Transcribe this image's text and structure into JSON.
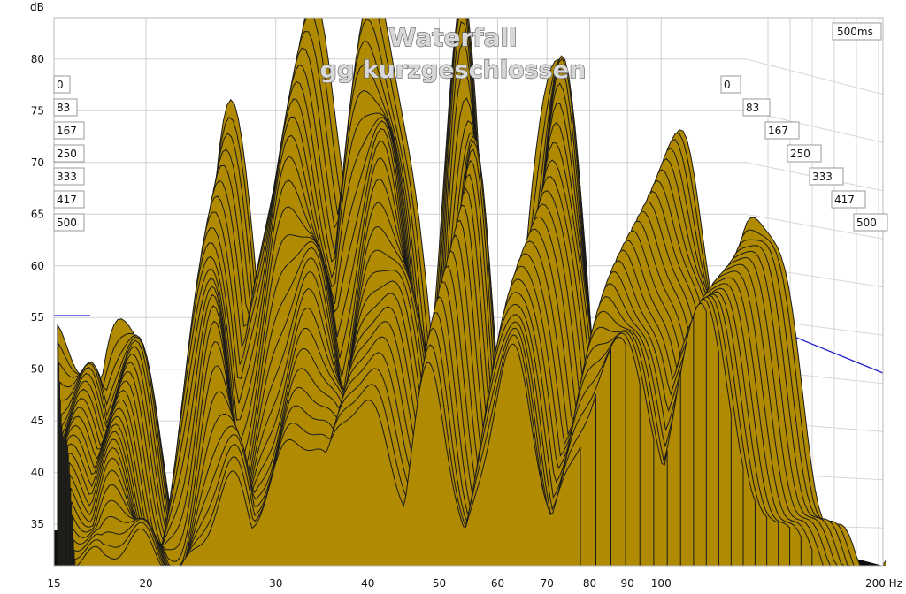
{
  "chart_data": {
    "type": "waterfall",
    "title": "Waterfall",
    "subtitle": "gg kurzgeschlossen",
    "ylabel": "dB",
    "xlabel": "Hz",
    "time_window_label": "500ms",
    "y_ticks": [
      35,
      40,
      45,
      50,
      55,
      60,
      65,
      70,
      75,
      80
    ],
    "ylim": [
      31,
      84
    ],
    "x_scale": "log",
    "xlim": [
      15,
      200
    ],
    "x_ticks": [
      {
        "label": "15",
        "value": 15
      },
      {
        "label": "20",
        "value": 20
      },
      {
        "label": "30",
        "value": 30
      },
      {
        "label": "40",
        "value": 40
      },
      {
        "label": "50",
        "value": 50
      },
      {
        "label": "60",
        "value": 60
      },
      {
        "label": "70",
        "value": 70
      },
      {
        "label": "80",
        "value": 80
      },
      {
        "label": "90",
        "value": 90
      },
      {
        "label": "100",
        "value": 100
      },
      {
        "label": "200 Hz",
        "value": 200
      }
    ],
    "time_slices_ms": [
      "0",
      "83",
      "167",
      "250",
      "333",
      "417",
      "500"
    ],
    "fill_color": "#b08a00",
    "line_color": "#1a1a1a",
    "reference_line_color": "#2222cc",
    "peaks": [
      {
        "freq": 15.3,
        "db": 53
      },
      {
        "freq": 18,
        "db": 56.5
      },
      {
        "freq": 25,
        "db": 78
      },
      {
        "freq": 33,
        "db": 84
      },
      {
        "freq": 42,
        "db": 86
      },
      {
        "freq": 55,
        "db": 86
      },
      {
        "freq": 72,
        "db": 82
      },
      {
        "freq": 100,
        "db": 72
      },
      {
        "freq": 130,
        "db": 66
      }
    ]
  }
}
